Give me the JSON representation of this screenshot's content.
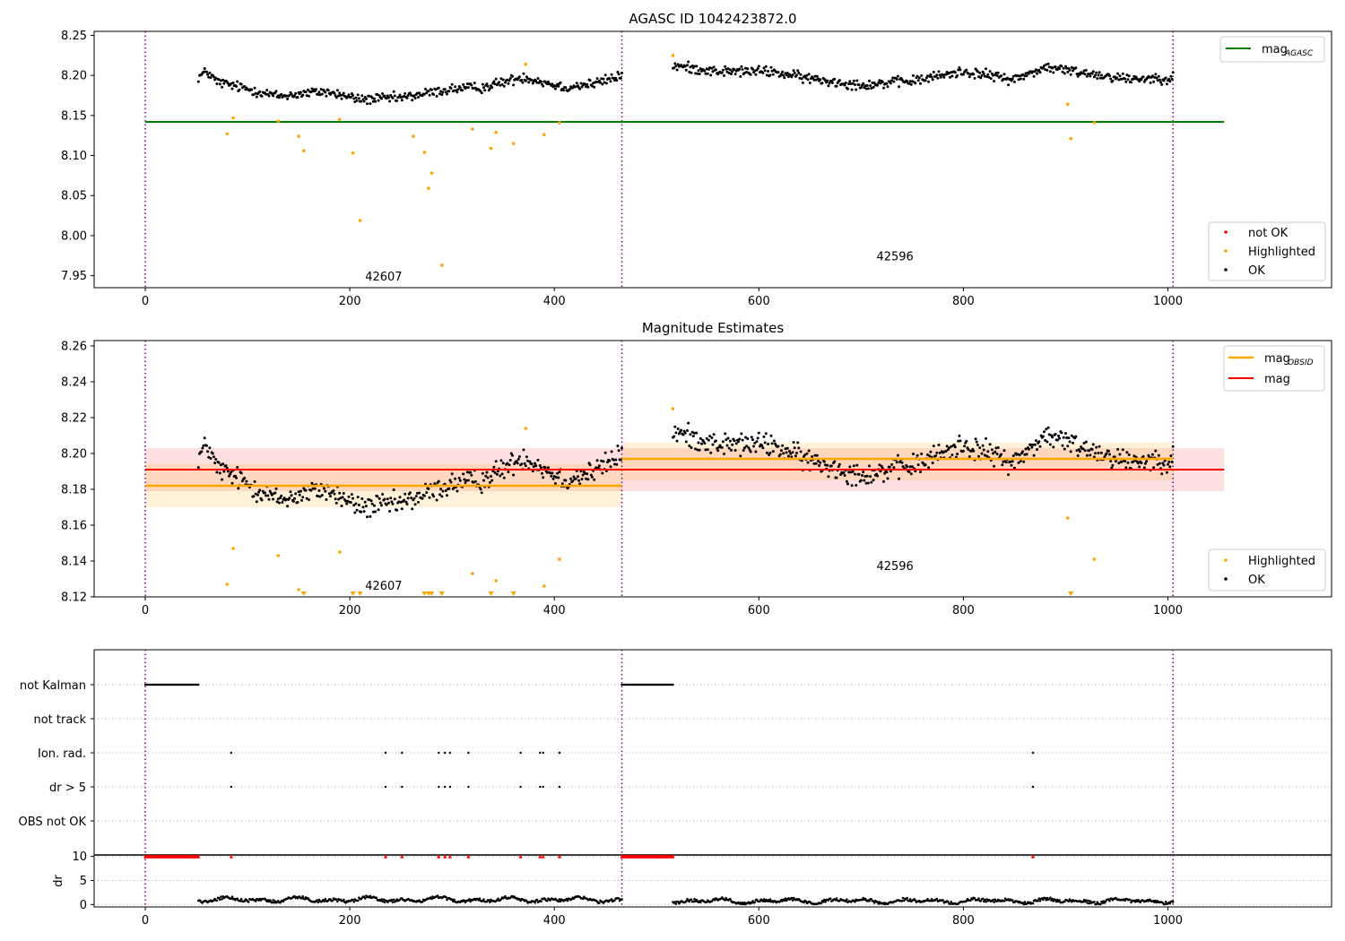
{
  "chart_data": [
    {
      "type": "scatter",
      "title": "AGASC ID 1042423872.0",
      "xlim": [
        -50,
        1160
      ],
      "ylim": [
        7.935,
        8.255
      ],
      "x_ticks": [
        0,
        200,
        400,
        600,
        800,
        1000
      ],
      "y_ticks": [
        7.95,
        8.0,
        8.05,
        8.1,
        8.15,
        8.2,
        8.25
      ],
      "y_tick_labels": [
        "7.95",
        "8.00",
        "8.05",
        "8.10",
        "8.15",
        "8.20",
        "8.25"
      ],
      "obs_boundaries": [
        0,
        466,
        1005
      ],
      "mag_agasc": 8.142,
      "mag_agasc_x_range": [
        0,
        1055
      ],
      "obs_labels": [
        {
          "text": "42607",
          "x": 215,
          "y": 7.944
        },
        {
          "text": "42596",
          "x": 715,
          "y": 7.969
        }
      ],
      "legend_lines": [
        {
          "label": "mag",
          "sub": "AGASC",
          "color": "#008000"
        }
      ],
      "legend_points": [
        {
          "label": "not OK",
          "color": "#ff0000"
        },
        {
          "label": "Highlighted",
          "color": "#ffa500"
        },
        {
          "label": "OK",
          "color": "#000000"
        }
      ],
      "highlighted_points": [
        [
          80,
          8.127
        ],
        [
          86,
          8.147
        ],
        [
          130,
          8.143
        ],
        [
          150,
          8.124
        ],
        [
          155,
          8.106
        ],
        [
          190,
          8.145
        ],
        [
          203,
          8.103
        ],
        [
          210,
          8.019
        ],
        [
          262,
          8.124
        ],
        [
          273,
          8.104
        ],
        [
          277,
          8.059
        ],
        [
          280,
          8.078
        ],
        [
          290,
          7.963
        ],
        [
          320,
          8.133
        ],
        [
          338,
          8.109
        ],
        [
          343,
          8.129
        ],
        [
          360,
          8.115
        ],
        [
          372,
          8.214
        ],
        [
          390,
          8.126
        ],
        [
          405,
          8.141
        ],
        [
          516,
          8.225
        ],
        [
          902,
          8.164
        ],
        [
          905,
          8.121
        ],
        [
          928,
          8.141
        ]
      ],
      "ok_segments": [
        {
          "x": [
            52,
            466
          ],
          "trend": [
            [
              52,
              8.198
            ],
            [
              60,
              8.205
            ],
            [
              70,
              8.192
            ],
            [
              100,
              8.183
            ],
            [
              130,
              8.174
            ],
            [
              175,
              8.18
            ],
            [
              210,
              8.17
            ],
            [
              250,
              8.172
            ],
            [
              300,
              8.183
            ],
            [
              330,
              8.185
            ],
            [
              370,
              8.198
            ],
            [
              410,
              8.185
            ],
            [
              440,
              8.19
            ],
            [
              466,
              8.2
            ]
          ],
          "noise": 0.007
        },
        {
          "x": [
            516,
            1005
          ],
          "trend": [
            [
              516,
              8.212
            ],
            [
              560,
              8.205
            ],
            [
              610,
              8.205
            ],
            [
              650,
              8.196
            ],
            [
              700,
              8.188
            ],
            [
              750,
              8.193
            ],
            [
              800,
              8.205
            ],
            [
              850,
              8.195
            ],
            [
              880,
              8.21
            ],
            [
              920,
              8.203
            ],
            [
              960,
              8.196
            ],
            [
              1005,
              8.197
            ]
          ],
          "noise": 0.007
        }
      ]
    },
    {
      "type": "scatter",
      "title": "Magnitude Estimates",
      "xlim": [
        -50,
        1160
      ],
      "ylim": [
        8.12,
        8.263
      ],
      "x_ticks": [
        0,
        200,
        400,
        600,
        800,
        1000
      ],
      "y_ticks": [
        8.12,
        8.14,
        8.16,
        8.18,
        8.2,
        8.22,
        8.24,
        8.26
      ],
      "y_tick_labels": [
        "8.12",
        "8.14",
        "8.16",
        "8.18",
        "8.20",
        "8.22",
        "8.24",
        "8.26"
      ],
      "obs_boundaries": [
        0,
        466,
        1005
      ],
      "mag": 8.191,
      "mag_band": [
        8.179,
        8.203
      ],
      "mag_x_range": [
        0,
        1055
      ],
      "mag_obsid": [
        {
          "x": [
            0,
            466
          ],
          "value": 8.182,
          "band": [
            8.17,
            8.194
          ]
        },
        {
          "x": [
            466,
            1005
          ],
          "value": 8.197,
          "band": [
            8.185,
            8.206
          ]
        }
      ],
      "obs_labels": [
        {
          "text": "42607",
          "x": 215,
          "y": 8.124
        },
        {
          "text": "42596",
          "x": 715,
          "y": 8.135
        }
      ],
      "legend_lines": [
        {
          "label": "mag",
          "sub": "OBSID",
          "color": "#ffa500"
        },
        {
          "label": "mag",
          "sub": "",
          "color": "#ff0000"
        }
      ],
      "legend_points": [
        {
          "label": "Highlighted",
          "color": "#ffa500"
        },
        {
          "label": "OK",
          "color": "#000000"
        }
      ],
      "highlighted_points": [
        [
          80,
          8.127
        ],
        [
          86,
          8.147
        ],
        [
          130,
          8.143
        ],
        [
          150,
          8.124
        ],
        [
          190,
          8.145
        ],
        [
          320,
          8.133
        ],
        [
          343,
          8.129
        ],
        [
          372,
          8.214
        ],
        [
          390,
          8.126
        ],
        [
          405,
          8.141
        ],
        [
          516,
          8.225
        ],
        [
          902,
          8.164
        ],
        [
          928,
          8.141
        ]
      ],
      "clipped_points_x": [
        155,
        203,
        210,
        273,
        277,
        280,
        290,
        338,
        360,
        905
      ],
      "ok_segments": [
        {
          "x": [
            52,
            466
          ],
          "trend": [
            [
              52,
              8.198
            ],
            [
              60,
              8.205
            ],
            [
              70,
              8.192
            ],
            [
              100,
              8.183
            ],
            [
              130,
              8.174
            ],
            [
              175,
              8.18
            ],
            [
              210,
              8.17
            ],
            [
              250,
              8.172
            ],
            [
              300,
              8.183
            ],
            [
              330,
              8.185
            ],
            [
              370,
              8.198
            ],
            [
              410,
              8.185
            ],
            [
              440,
              8.19
            ],
            [
              466,
              8.2
            ]
          ],
          "noise": 0.007
        },
        {
          "x": [
            516,
            1005
          ],
          "trend": [
            [
              516,
              8.212
            ],
            [
              560,
              8.205
            ],
            [
              610,
              8.205
            ],
            [
              650,
              8.196
            ],
            [
              700,
              8.188
            ],
            [
              750,
              8.193
            ],
            [
              800,
              8.205
            ],
            [
              850,
              8.195
            ],
            [
              880,
              8.21
            ],
            [
              920,
              8.203
            ],
            [
              960,
              8.196
            ],
            [
              1005,
              8.197
            ]
          ],
          "noise": 0.007
        }
      ]
    },
    {
      "type": "scatter",
      "title": "",
      "xlim": [
        -50,
        1160
      ],
      "obs_boundaries": [
        0,
        466,
        1005
      ],
      "flag_rows": [
        "not Kalman",
        "not track",
        "Ion. rad.",
        "dr > 5",
        "OBS not OK"
      ],
      "not_kalman_ranges": [
        [
          0,
          52
        ],
        [
          466,
          516
        ]
      ],
      "ion_rad_x": [
        84,
        235,
        251,
        287,
        293,
        298,
        316,
        367,
        386,
        389,
        405,
        868
      ],
      "dr_gt5_x": [
        84,
        235,
        251,
        287,
        293,
        298,
        316,
        367,
        386,
        389,
        405,
        868
      ]
    },
    {
      "type": "scatter",
      "title": "",
      "ylabel": "dr",
      "xlim": [
        -50,
        1160
      ],
      "ylim": [
        -0.5,
        10.3
      ],
      "x_ticks": [
        0,
        200,
        400,
        600,
        800,
        1000
      ],
      "y_ticks": [
        0,
        5,
        10
      ],
      "y_tick_labels": [
        "0",
        "5",
        "10"
      ],
      "obs_boundaries": [
        0,
        466,
        1005
      ],
      "clipped_ranges": [
        [
          0,
          52
        ],
        [
          466,
          516
        ]
      ],
      "clipped_x": [
        84,
        235,
        251,
        287,
        293,
        298,
        316,
        367,
        386,
        389,
        405,
        868
      ],
      "dr_segments": [
        {
          "x": [
            52,
            466
          ],
          "base": 1.0,
          "amp": 0.55
        },
        {
          "x": [
            516,
            1005
          ],
          "base": 0.75,
          "amp": 0.55
        }
      ]
    }
  ]
}
